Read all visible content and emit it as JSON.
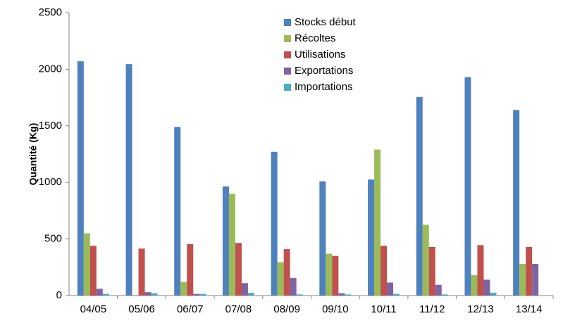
{
  "chart_data": {
    "type": "bar",
    "ylabel": "Quantité (Kg)",
    "categories": [
      "04/05",
      "05/06",
      "06/07",
      "07/08",
      "08/09",
      "09/10",
      "10/11",
      "11/12",
      "12/13",
      "13/14"
    ],
    "series": [
      {
        "name": "Stocks début",
        "color": "#4f81bd",
        "values": [
          2070,
          2045,
          1490,
          965,
          1270,
          1010,
          1025,
          1755,
          1930,
          1640
        ]
      },
      {
        "name": "Récoltes",
        "color": "#9bbb59",
        "values": [
          550,
          5,
          120,
          900,
          295,
          370,
          1290,
          625,
          180,
          280
        ]
      },
      {
        "name": "Utilisations",
        "color": "#c0504d",
        "values": [
          440,
          415,
          455,
          465,
          410,
          350,
          440,
          430,
          445,
          430
        ]
      },
      {
        "name": "Exportations",
        "color": "#8064a2",
        "values": [
          60,
          30,
          15,
          110,
          155,
          20,
          115,
          95,
          140,
          280
        ]
      },
      {
        "name": "Importations",
        "color": "#4bacc6",
        "values": [
          15,
          20,
          15,
          25,
          10,
          10,
          15,
          10,
          25,
          0
        ]
      }
    ],
    "ylim": [
      0,
      2500
    ],
    "yticks": [
      0,
      500,
      1000,
      1500,
      2000,
      2500
    ],
    "grid": false,
    "legend": "top"
  }
}
